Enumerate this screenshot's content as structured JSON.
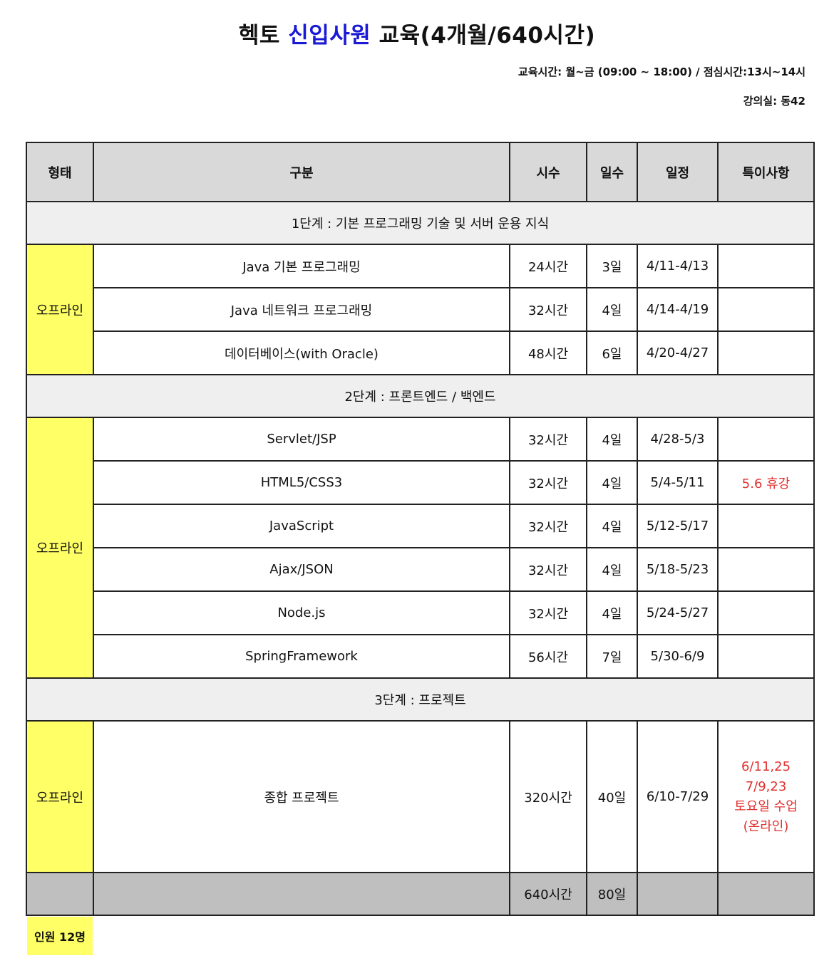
{
  "header": {
    "title_a": "헥토 ",
    "title_b": "신입사원",
    "title_c": " 교육(4개월/640시간)",
    "hours": "교육시간: 월~금 (09:00 ~ 18:00)  / 점심시간:13시~14시",
    "room": "강의실: 동42"
  },
  "columns": [
    "형태",
    "구분",
    "시수",
    "일수",
    "일정",
    "특이사항"
  ],
  "stages": [
    {
      "label": "1단계 : 기본 프로그래밍 기술 및 서버 운용 지식",
      "kind": "오프라인",
      "rows": [
        {
          "name": "Java 기본 프로그래밍",
          "hours": "24시간",
          "days": "3일",
          "schedule": "4/11-4/13",
          "note": ""
        },
        {
          "name": "Java 네트워크 프로그래밍",
          "hours": "32시간",
          "days": "4일",
          "schedule": "4/14-4/19",
          "note": ""
        },
        {
          "name": "데이터베이스(with Oracle)",
          "hours": "48시간",
          "days": "6일",
          "schedule": "4/20-4/27",
          "note": ""
        }
      ]
    },
    {
      "label": "2단계 : 프론트엔드 / 백엔드",
      "kind": "오프라인",
      "rows": [
        {
          "name": "Servlet/JSP",
          "hours": "32시간",
          "days": "4일",
          "schedule": "4/28-5/3",
          "note": ""
        },
        {
          "name": "HTML5/CSS3",
          "hours": "32시간",
          "days": "4일",
          "schedule": "5/4-5/11",
          "note": "5.6 휴강"
        },
        {
          "name": "JavaScript",
          "hours": "32시간",
          "days": "4일",
          "schedule": "5/12-5/17",
          "note": ""
        },
        {
          "name": "Ajax/JSON",
          "hours": "32시간",
          "days": "4일",
          "schedule": "5/18-5/23",
          "note": ""
        },
        {
          "name": "Node.js",
          "hours": "32시간",
          "days": "4일",
          "schedule": "5/24-5/27",
          "note": ""
        },
        {
          "name": "SpringFramework",
          "hours": "56시간",
          "days": "7일",
          "schedule": "5/30-6/9",
          "note": ""
        }
      ]
    },
    {
      "label": "3단계 : 프로젝트",
      "kind": "오프라인",
      "rows": [
        {
          "name": "종합 프로젝트",
          "hours": "320시간",
          "days": "40일",
          "schedule": "6/10-7/29",
          "note_lines": [
            "6/11,25",
            "7/9,23",
            "토요일 수업",
            "(온라인)"
          ]
        }
      ]
    }
  ],
  "total": {
    "hours": "640시간",
    "days": "80일"
  },
  "headcount": "인원 12명",
  "colors": {
    "highlight_yellow": "#ffff66",
    "note_red": "#e0312f",
    "title_blue": "#1a1ad6",
    "header_gray": "#d9d9d9",
    "total_gray": "#bfbfbf"
  }
}
